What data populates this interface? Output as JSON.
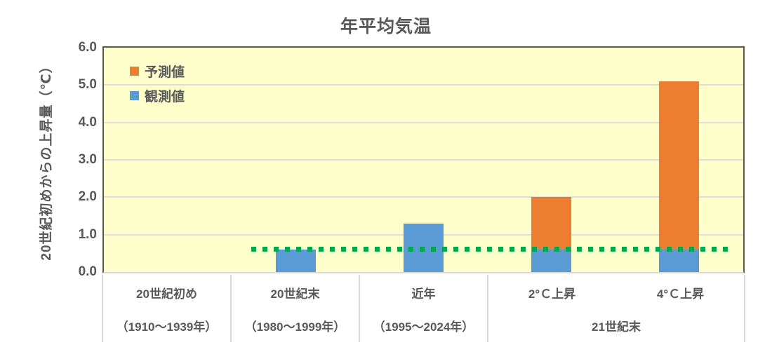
{
  "chart_data": {
    "type": "bar",
    "stacked": true,
    "title": "年平均気温",
    "ylabel": "20世紀初めからの上昇量（℃）",
    "ylim": [
      0.0,
      6.0
    ],
    "yticks": [
      "0.0",
      "1.0",
      "2.0",
      "3.0",
      "4.0",
      "5.0",
      "6.0"
    ],
    "grid": true,
    "categories": [
      "20世紀初め",
      "20世紀末",
      "近年",
      "2°Ｃ上昇",
      "4°Ｃ上昇"
    ],
    "category_sublabels": [
      "（1910～1939年）",
      "（1980～1999年）",
      "（1995～2024年）"
    ],
    "category_group": {
      "label": "21世紀末",
      "from": 3,
      "to": 4
    },
    "series": [
      {
        "name": "観測値",
        "color": "#5B9BD5",
        "values": [
          0,
          0.6,
          1.3,
          0.6,
          0.6
        ]
      },
      {
        "name": "予測値",
        "color": "#ED7D31",
        "values": [
          0,
          0,
          0,
          1.4,
          4.5
        ]
      }
    ],
    "bar_totals": [
      0,
      0.6,
      1.3,
      2.0,
      5.1
    ],
    "reference_line": {
      "value": 0.6,
      "color": "#00A650",
      "style": "dotted"
    },
    "legend": {
      "position": "top-left-inside",
      "items": [
        {
          "label": "予測値",
          "color": "#ED7D31"
        },
        {
          "label": "観測値",
          "color": "#5B9BD5"
        }
      ]
    },
    "colors": {
      "plot_background": "#FFFFCC",
      "gridline": "#DCDCDC",
      "plot_border": "#595959",
      "axis_line": "#D9D9D9",
      "text": "#595959",
      "page_background": "#FFFFFF"
    }
  }
}
